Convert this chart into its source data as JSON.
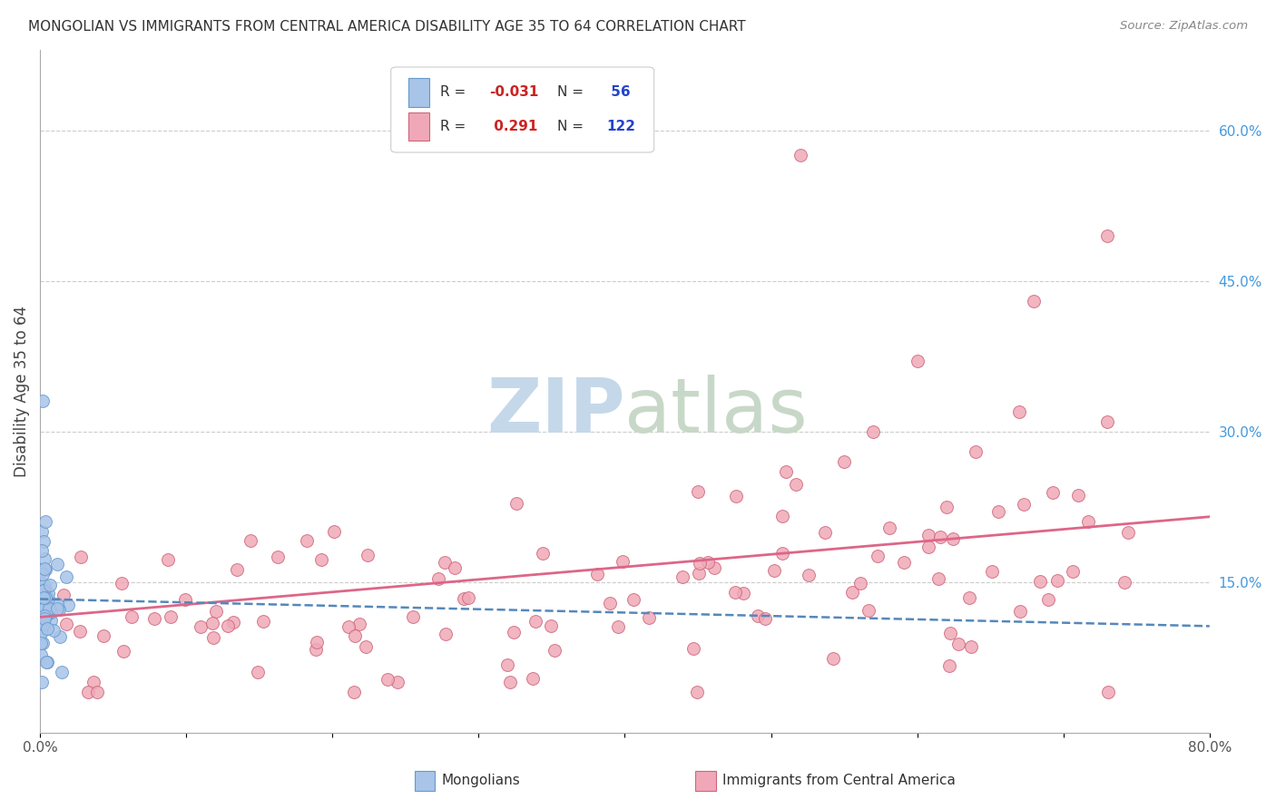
{
  "title": "MONGOLIAN VS IMMIGRANTS FROM CENTRAL AMERICA DISABILITY AGE 35 TO 64 CORRELATION CHART",
  "source": "Source: ZipAtlas.com",
  "ylabel": "Disability Age 35 to 64",
  "xlabel_mongolians": "Mongolians",
  "xlabel_immigrants": "Immigrants from Central America",
  "xlim": [
    0.0,
    0.8
  ],
  "ylim": [
    0.0,
    0.68
  ],
  "mongolian_color": "#a8c4e8",
  "mongolian_edge_color": "#6699cc",
  "immigrant_color": "#f0a8b8",
  "immigrant_edge_color": "#cc6677",
  "mongolian_R": -0.031,
  "mongolian_N": 56,
  "immigrant_R": 0.291,
  "immigrant_N": 122,
  "watermark_ZIP_color": "#c5d8ea",
  "watermark_atlas_color": "#c8d8c8",
  "grid_color": "#cccccc",
  "background_color": "#ffffff",
  "mongolian_line_color": "#5588bb",
  "immigrant_line_color": "#dd6688",
  "right_tick_color": "#4499dd",
  "title_color": "#333333",
  "source_color": "#888888",
  "legend_text_color": "#333333",
  "legend_R_color": "#cc2222",
  "legend_N_color": "#2244cc"
}
